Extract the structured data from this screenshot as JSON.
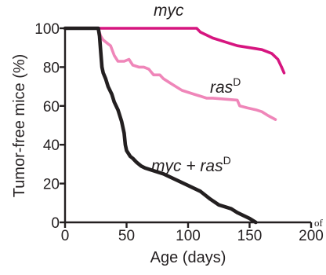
{
  "chart_data": {
    "type": "line",
    "xlabel": "Age (days)",
    "ylabel": "Tumor-free mice (%)",
    "xlim": [
      0,
      200
    ],
    "ylim": [
      0,
      100
    ],
    "xticks": [
      0,
      50,
      100,
      150,
      200
    ],
    "yticks": [
      0,
      20,
      40,
      60,
      80,
      100
    ],
    "grid": false,
    "legend": "none",
    "series": [
      {
        "name": "myc",
        "label_main": "myc",
        "label_sup": "",
        "color": "#d6157f",
        "points": [
          [
            0,
            100
          ],
          [
            107,
            100
          ],
          [
            110,
            98
          ],
          [
            120,
            95
          ],
          [
            130,
            93
          ],
          [
            140,
            91
          ],
          [
            150,
            90
          ],
          [
            160,
            89
          ],
          [
            168,
            87
          ],
          [
            173,
            84
          ],
          [
            176,
            80
          ],
          [
            178,
            77
          ]
        ]
      },
      {
        "name": "rasD",
        "label_main": "ras",
        "label_sup": "D",
        "color": "#ef86b9",
        "points": [
          [
            0,
            100
          ],
          [
            27,
            100
          ],
          [
            29,
            96
          ],
          [
            31,
            94
          ],
          [
            35,
            92
          ],
          [
            37,
            91
          ],
          [
            40,
            86
          ],
          [
            43,
            83
          ],
          [
            48,
            83
          ],
          [
            52,
            84
          ],
          [
            55,
            81
          ],
          [
            60,
            80
          ],
          [
            64,
            80
          ],
          [
            68,
            79
          ],
          [
            72,
            76
          ],
          [
            77,
            76
          ],
          [
            80,
            74
          ],
          [
            85,
            72
          ],
          [
            90,
            70
          ],
          [
            95,
            68
          ],
          [
            100,
            67
          ],
          [
            105,
            66
          ],
          [
            110,
            65
          ],
          [
            115,
            64
          ],
          [
            120,
            64
          ],
          [
            140,
            63
          ],
          [
            142,
            60
          ],
          [
            148,
            59
          ],
          [
            155,
            58
          ],
          [
            160,
            57
          ],
          [
            165,
            55
          ],
          [
            171,
            53
          ]
        ]
      },
      {
        "name": "myc + rasD",
        "label_main": "myc + ras",
        "label_sup": "D",
        "color": "#231f20",
        "points": [
          [
            0,
            100
          ],
          [
            27,
            100
          ],
          [
            28,
            96
          ],
          [
            29,
            88
          ],
          [
            30,
            80
          ],
          [
            31,
            77
          ],
          [
            33,
            74
          ],
          [
            35,
            70
          ],
          [
            38,
            66
          ],
          [
            40,
            62
          ],
          [
            43,
            58
          ],
          [
            46,
            52
          ],
          [
            48,
            46
          ],
          [
            49,
            40
          ],
          [
            50,
            37
          ],
          [
            51,
            36
          ],
          [
            53,
            34
          ],
          [
            55,
            33
          ],
          [
            58,
            31
          ],
          [
            62,
            29
          ],
          [
            65,
            28
          ],
          [
            70,
            27
          ],
          [
            80,
            25
          ],
          [
            90,
            22
          ],
          [
            100,
            19
          ],
          [
            110,
            16
          ],
          [
            118,
            12
          ],
          [
            125,
            9
          ],
          [
            130,
            8
          ],
          [
            135,
            7
          ],
          [
            140,
            5
          ],
          [
            150,
            2
          ],
          [
            155,
            0
          ]
        ]
      }
    ]
  },
  "stray_text": [
    "of"
  ]
}
